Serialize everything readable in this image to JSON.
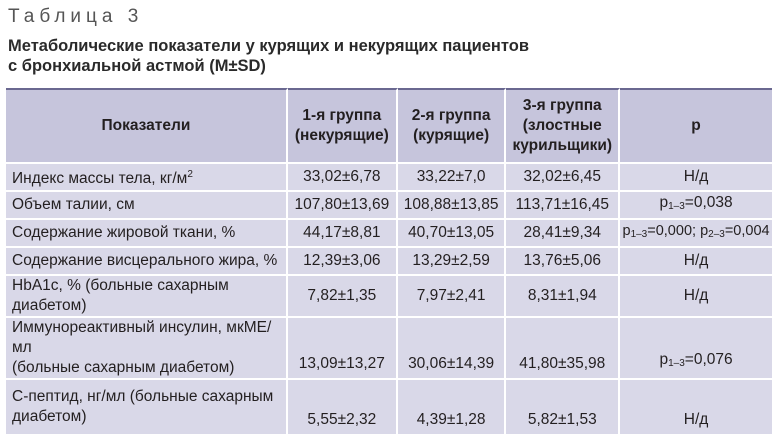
{
  "table_label": "Таблица 3",
  "caption_line1": "Метаболические показатели у курящих и некурящих пациентов",
  "caption_line2": "с бронхиальной астмой (M±SD)",
  "header": {
    "col1": "Показатели",
    "col2_l1": "1-я группа",
    "col2_l2": "(некурящие)",
    "col3_l1": "2-я группа",
    "col3_l2": "(курящие)",
    "col4_l1": "3-я группа",
    "col4_l2": "(злостные",
    "col4_l3": "курильщики)",
    "col5": "p"
  },
  "rows": [
    {
      "label": "Индекс массы тела, кг/м",
      "label_sup": "2",
      "g1": "33,02±6,78",
      "g2": "33,22±7,0",
      "g3": "32,02±6,45",
      "p": "Н/д"
    },
    {
      "label": "Объем талии, см",
      "g1": "107,80±13,69",
      "g2": "108,88±13,85",
      "g3": "113,71±16,45",
      "p_pre": "p",
      "p_sub": "1–3",
      "p_post": "=0,038"
    },
    {
      "label": "Содержание жировой ткани, %",
      "g1": "44,17±8,81",
      "g2": "40,70±13,05",
      "g3": "28,41±9,34",
      "p_a_pre": "p",
      "p_a_sub": "1–3",
      "p_a_post": "=0,000; ",
      "p_b_pre": "p",
      "p_b_sub": "2–3",
      "p_b_post": "=0,004"
    },
    {
      "label": "Содержание висцерального жира, %",
      "g1": "12,39±3,06",
      "g2": "13,29±2,59",
      "g3": "13,76±5,06",
      "p": "Н/д"
    },
    {
      "label": "HbA1c, % (больные сахарным диабетом)",
      "g1": "7,82±1,35",
      "g2": "7,97±2,41",
      "g3": "8,31±1,94",
      "p": "Н/д"
    },
    {
      "label_l1": "Иммунореактивный инсулин, мкМЕ/мл",
      "label_l2": "(больные сахарным диабетом)",
      "g1": "13,09±13,27",
      "g2": "30,06±14,39",
      "g3": "41,80±35,98",
      "p_pre": "p",
      "p_sub": "1–3",
      "p_post": "=0,076"
    },
    {
      "label_l1": "С-пептид, нг/мл (больные сахарным",
      "label_l2": "диабетом)",
      "g1": "5,55±2,32",
      "g2": "4,39±1,28",
      "g3": "5,82±1,53",
      "p": "Н/д"
    }
  ]
}
